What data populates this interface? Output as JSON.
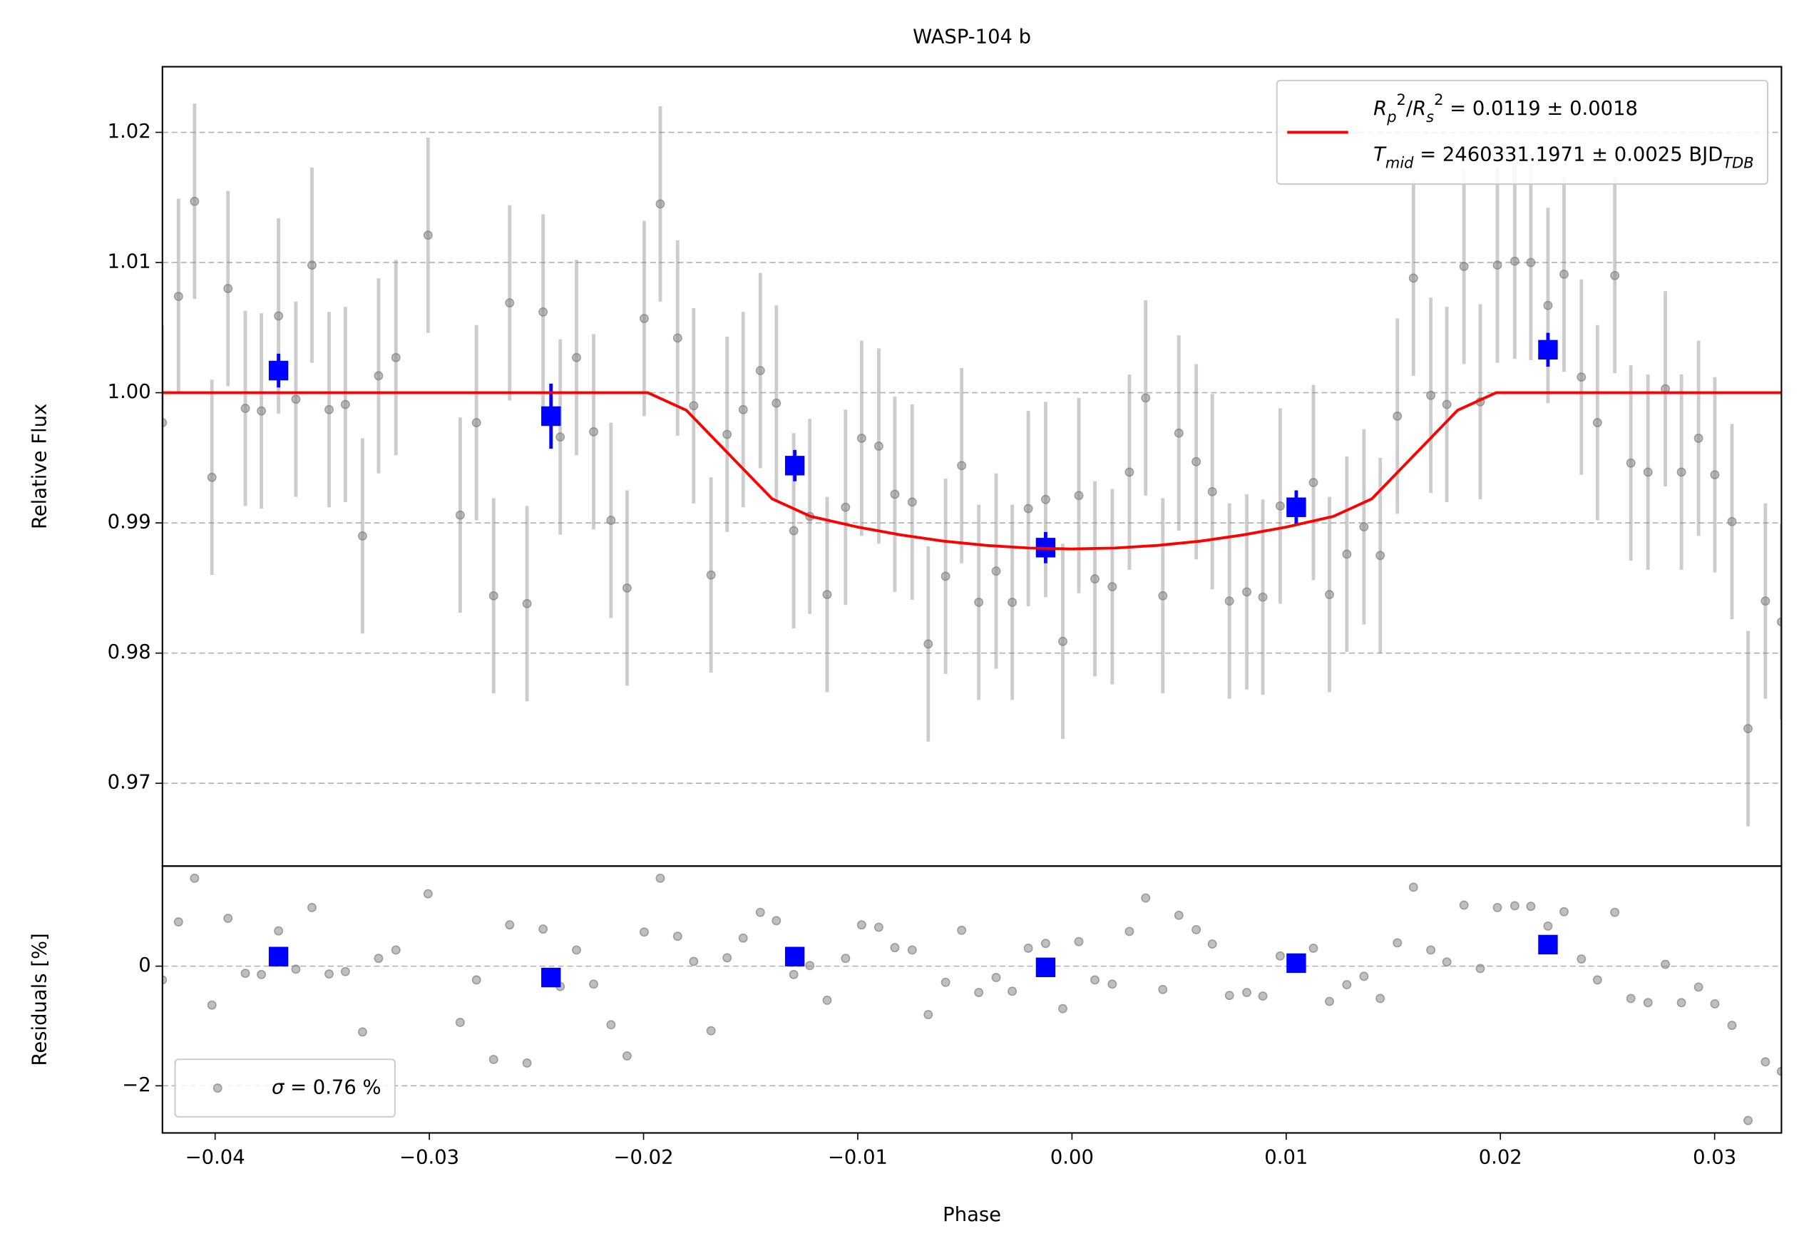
{
  "chart_data": [
    {
      "type": "scatter",
      "title": "WASP-104 b",
      "ylabel": "Relative Flux",
      "xlim": [
        -0.04246,
        0.03312
      ],
      "ylim": [
        0.96364,
        1.02504
      ],
      "yticks": [
        0.97,
        0.98,
        0.99,
        {
          "value": 1.0,
          "label": "1.00"
        },
        1.01,
        1.02
      ],
      "grid": "y",
      "legend": "upper right",
      "series": [
        {
          "color": "#808080",
          "marker": "o",
          "yerr": 0.0075,
          "x": [
            -0.04246,
            -0.04171,
            -0.04096,
            -0.04015,
            -0.0394,
            -0.03859,
            -0.03784,
            -0.03704,
            -0.03623,
            -0.03548,
            -0.03468,
            -0.03392,
            -0.03312,
            -0.03237,
            -0.03156,
            -0.03006,
            -0.02856,
            -0.0278,
            -0.027,
            -0.02625,
            -0.02544,
            -0.02469,
            -0.02389,
            -0.02313,
            -0.02233,
            -0.02152,
            -0.02077,
            -0.01997,
            -0.01922,
            -0.01841,
            -0.01766,
            -0.01685,
            -0.0161,
            -0.01535,
            -0.01455,
            -0.0138,
            -0.01299,
            -0.01224,
            -0.01143,
            -0.01057,
            -0.00982,
            -0.00902,
            -0.00827,
            -0.00746,
            -0.00671,
            -0.0059,
            -0.00515,
            -0.00435,
            -0.00354,
            -0.00279,
            -0.00204,
            -0.00123,
            -0.00043,
            0.00032,
            0.00107,
            0.00188,
            0.00268,
            0.00344,
            0.00424,
            0.00499,
            0.0058,
            0.00655,
            0.00735,
            0.00816,
            0.00891,
            0.00972,
            0.01127,
            0.01202,
            0.01283,
            0.01363,
            0.01439,
            0.01519,
            0.01594,
            0.01675,
            0.0175,
            0.0183,
            0.01906,
            0.01986,
            0.02067,
            0.02142,
            0.02222,
            0.02297,
            0.02378,
            0.02453,
            0.02534,
            0.02609,
            0.02689,
            0.0277,
            0.02845,
            0.02925,
            0.03001,
            0.03081,
            0.03156,
            0.03237,
            0.03312
          ],
          "values": [
            0.9977,
            1.0074,
            1.0147,
            0.9935,
            1.008,
            0.9988,
            0.9986,
            1.0059,
            0.9995,
            1.0098,
            0.9987,
            0.9991,
            0.989,
            1.0013,
            1.0027,
            1.0121,
            0.9906,
            0.9977,
            0.9844,
            1.0069,
            0.9838,
            1.0062,
            0.9966,
            1.0027,
            0.997,
            0.9902,
            0.985,
            1.0057,
            1.0145,
            1.0042,
            0.999,
            0.986,
            0.9968,
            0.9987,
            1.0017,
            0.9992,
            0.9894,
            0.9905,
            0.9845,
            0.9912,
            0.9965,
            0.9959,
            0.9922,
            0.9916,
            0.9807,
            0.9859,
            0.9944,
            0.9839,
            0.9863,
            0.9839,
            0.9911,
            0.9918,
            0.9809,
            0.9921,
            0.9857,
            0.9851,
            0.9939,
            0.9996,
            0.9844,
            0.9969,
            0.9947,
            0.9924,
            0.984,
            0.9847,
            0.9843,
            0.9913,
            0.9931,
            0.9845,
            0.9876,
            0.9897,
            0.9875,
            0.9982,
            1.0088,
            0.9998,
            0.9991,
            1.0097,
            0.9993,
            1.0098,
            1.0101,
            1.01,
            1.0067,
            1.0091,
            1.0012,
            0.9977,
            1.009,
            0.9946,
            0.9939,
            1.0003,
            0.9939,
            0.9965,
            0.9937,
            0.9901,
            0.9742,
            0.984,
            0.9824
          ]
        },
        {
          "color": "#0000ff",
          "marker": "s",
          "x": [
            -0.03704,
            -0.02432,
            -0.01294,
            -0.00123,
            0.01047,
            0.02222
          ],
          "values": [
            1.0017,
            0.9982,
            0.9944,
            0.9881,
            0.9912,
            1.0033
          ],
          "errors": [
            0.0013,
            0.0025,
            0.0012,
            0.0012,
            0.0013,
            0.0013
          ]
        },
        {
          "type": "line",
          "color": "#ff0000",
          "name": [
            [
              {
                "text": "R",
                "style": "italic"
              },
              {
                "text": "p",
                "shift": "sub",
                "style": "italic"
              },
              {
                "text": "2",
                "shift": "super"
              },
              {
                "text": "/"
              },
              {
                "text": "R",
                "style": "italic"
              },
              {
                "text": "s",
                "shift": "sub",
                "style": "italic"
              },
              {
                "text": "2",
                "shift": "super"
              },
              {
                "text": " = 0.0119 ± 0.0018"
              }
            ],
            [
              {
                "text": "T",
                "style": "italic"
              },
              {
                "text": "mid",
                "shift": "sub",
                "style": "italic"
              },
              {
                "text": " = 2460331.1971 ± 0.0025 BJD"
              },
              {
                "text": "TDB",
                "shift": "sub",
                "style": "italic"
              }
            ]
          ],
          "x": [
            -0.04246,
            -0.0198,
            -0.018,
            -0.016,
            -0.014,
            -0.0122,
            -0.01,
            -0.008,
            -0.006,
            -0.004,
            -0.002,
            0,
            0.002,
            0.004,
            0.006,
            0.008,
            0.01,
            0.0122,
            0.014,
            0.016,
            0.018,
            0.0198,
            0.03312
          ],
          "values": [
            1,
            1,
            0.99865,
            0.99525,
            0.99185,
            0.9905,
            0.98968,
            0.98908,
            0.9886,
            0.98827,
            0.98807,
            0.988,
            0.98807,
            0.98827,
            0.9886,
            0.98908,
            0.98968,
            0.9905,
            0.99185,
            0.99525,
            0.99865,
            1,
            1
          ]
        }
      ]
    },
    {
      "type": "scatter",
      "ylabel": "Residuals [%]",
      "xlabel": "Phase",
      "xlim": [
        -0.04246,
        0.03312
      ],
      "ylim": [
        -2.788,
        1.673
      ],
      "xticks": [
        {
          "value": -0.04,
          "label": "−0.04"
        },
        {
          "value": -0.03,
          "label": "−0.03"
        },
        {
          "value": -0.02,
          "label": "−0.02"
        },
        {
          "value": -0.01,
          "label": "−0.01"
        },
        {
          "value": 0,
          "label": "0.00"
        },
        0.01,
        0.02,
        0.03
      ],
      "yticks": [
        {
          "value": -2,
          "label": "−2"
        },
        0
      ],
      "grid": "y",
      "legend": "lower left",
      "series": [
        {
          "color": "#808080",
          "marker": "o",
          "name": [
            {
              "text": "σ",
              "style": "italic"
            },
            {
              "text": " = 0.76 %"
            }
          ],
          "x": [
            -0.04246,
            -0.04171,
            -0.04096,
            -0.04015,
            -0.0394,
            -0.03859,
            -0.03784,
            -0.03704,
            -0.03623,
            -0.03548,
            -0.03468,
            -0.03392,
            -0.03312,
            -0.03237,
            -0.03156,
            -0.03006,
            -0.02856,
            -0.0278,
            -0.027,
            -0.02625,
            -0.02544,
            -0.02469,
            -0.02389,
            -0.02313,
            -0.02233,
            -0.02152,
            -0.02077,
            -0.01997,
            -0.01922,
            -0.01841,
            -0.01766,
            -0.01685,
            -0.0161,
            -0.01535,
            -0.01455,
            -0.0138,
            -0.01299,
            -0.01224,
            -0.01143,
            -0.01057,
            -0.00982,
            -0.00902,
            -0.00827,
            -0.00746,
            -0.00671,
            -0.0059,
            -0.00515,
            -0.00435,
            -0.00354,
            -0.00279,
            -0.00204,
            -0.00123,
            -0.00043,
            0.00032,
            0.00107,
            0.00188,
            0.00268,
            0.00344,
            0.00424,
            0.00499,
            0.0058,
            0.00655,
            0.00735,
            0.00816,
            0.00891,
            0.00972,
            0.01127,
            0.01202,
            0.01283,
            0.01363,
            0.01439,
            0.01519,
            0.01594,
            0.01675,
            0.0175,
            0.0183,
            0.01906,
            0.01986,
            0.02067,
            0.02142,
            0.02222,
            0.02297,
            0.02378,
            0.02453,
            0.02534,
            0.02609,
            0.02689,
            0.0277,
            0.02845,
            0.02925,
            0.03001,
            0.03081,
            0.03156,
            0.03237,
            0.03312
          ],
          "values": [
            -0.23,
            0.74,
            1.47,
            -0.65,
            0.8,
            -0.12,
            -0.14,
            0.59,
            -0.05,
            0.98,
            -0.13,
            -0.09,
            -1.1,
            0.13,
            0.27,
            1.21,
            -0.94,
            -0.23,
            -1.56,
            0.69,
            -1.62,
            0.62,
            -0.34,
            0.27,
            -0.3,
            -0.98,
            -1.5,
            0.57,
            1.47,
            0.5,
            0.08,
            -1.08,
            0.14,
            0.47,
            0.9,
            0.76,
            -0.14,
            0.01,
            -0.57,
            0.13,
            0.69,
            0.65,
            0.31,
            0.27,
            -0.81,
            -0.27,
            0.6,
            -0.44,
            -0.19,
            -0.42,
            0.3,
            0.38,
            -0.71,
            0.41,
            -0.23,
            -0.3,
            0.58,
            1.14,
            -0.39,
            0.85,
            0.61,
            0.37,
            -0.49,
            -0.44,
            -0.5,
            0.17,
            0.3,
            -0.59,
            -0.31,
            -0.17,
            -0.54,
            0.39,
            1.32,
            0.27,
            0.07,
            1.02,
            -0.04,
            0.98,
            1.01,
            1.0,
            0.67,
            0.91,
            0.12,
            -0.23,
            0.9,
            -0.54,
            -0.61,
            0.03,
            -0.61,
            -0.35,
            -0.63,
            -0.99,
            -2.58,
            -1.6,
            -1.76
          ]
        },
        {
          "color": "#0000ff",
          "marker": "s",
          "x": [
            -0.03704,
            -0.02432,
            -0.01294,
            -0.00123,
            0.01047,
            0.02222
          ],
          "values": [
            0.16,
            -0.19,
            0.16,
            -0.02,
            0.05,
            0.36
          ]
        }
      ]
    }
  ]
}
